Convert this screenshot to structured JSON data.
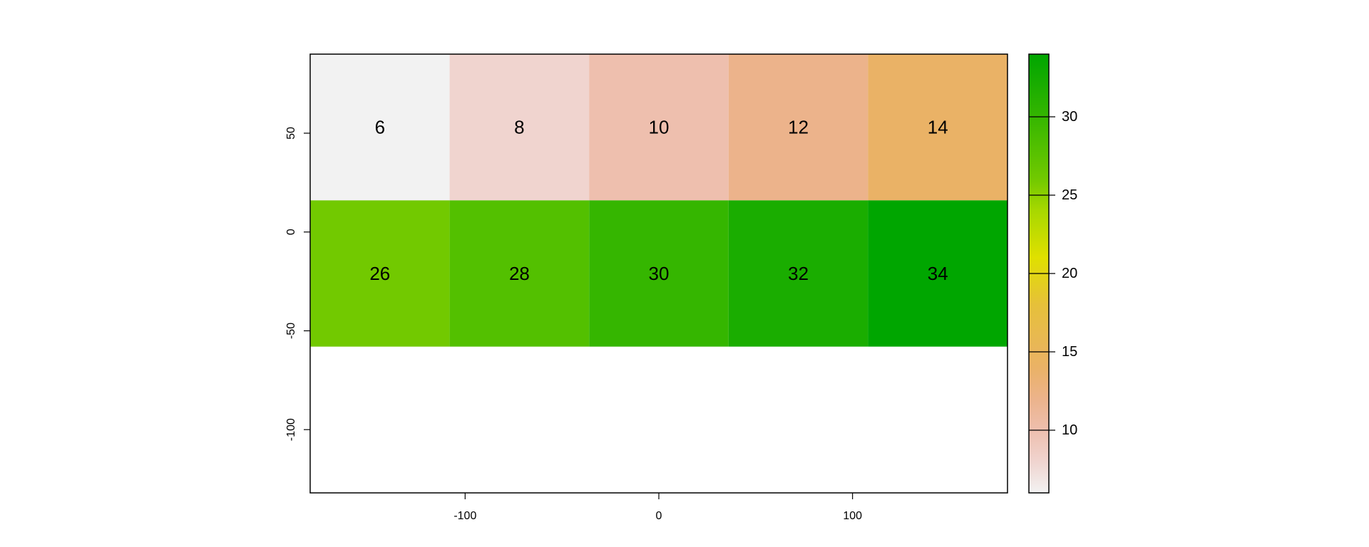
{
  "chart_data": {
    "type": "heatmap",
    "title": "",
    "xlabel": "",
    "ylabel": "",
    "xlim": [
      -180,
      180
    ],
    "ylim": [
      -132,
      90
    ],
    "x_ticks": [
      -100,
      0,
      100
    ],
    "y_ticks": [
      50,
      0,
      -50,
      -100
    ],
    "cell_extent": {
      "columns": [
        [
          -180,
          -108
        ],
        [
          -108,
          -36
        ],
        [
          -36,
          36
        ],
        [
          36,
          108
        ],
        [
          108,
          180
        ]
      ],
      "rows": [
        [
          90,
          16
        ],
        [
          16,
          -58
        ]
      ]
    },
    "grid": [
      [
        6,
        8,
        10,
        12,
        14
      ],
      [
        26,
        28,
        30,
        32,
        34
      ]
    ],
    "value_range": [
      6,
      34
    ],
    "colorbar": {
      "ticks": [
        10,
        15,
        20,
        25,
        30
      ],
      "stops": [
        {
          "value": 6,
          "color": "#f2f2f2"
        },
        {
          "value": 8,
          "color": "#f0d4cf"
        },
        {
          "value": 10,
          "color": "#eebfae"
        },
        {
          "value": 12,
          "color": "#ecb38b"
        },
        {
          "value": 14,
          "color": "#eab266"
        },
        {
          "value": 18,
          "color": "#e6c03a"
        },
        {
          "value": 21,
          "color": "#e0e000"
        },
        {
          "value": 24,
          "color": "#a8d800"
        },
        {
          "value": 26,
          "color": "#72c900"
        },
        {
          "value": 28,
          "color": "#53c000"
        },
        {
          "value": 30,
          "color": "#35b600"
        },
        {
          "value": 32,
          "color": "#1aad00"
        },
        {
          "value": 34,
          "color": "#00a600"
        }
      ]
    },
    "grid_lines": false,
    "legend_position": "right"
  }
}
